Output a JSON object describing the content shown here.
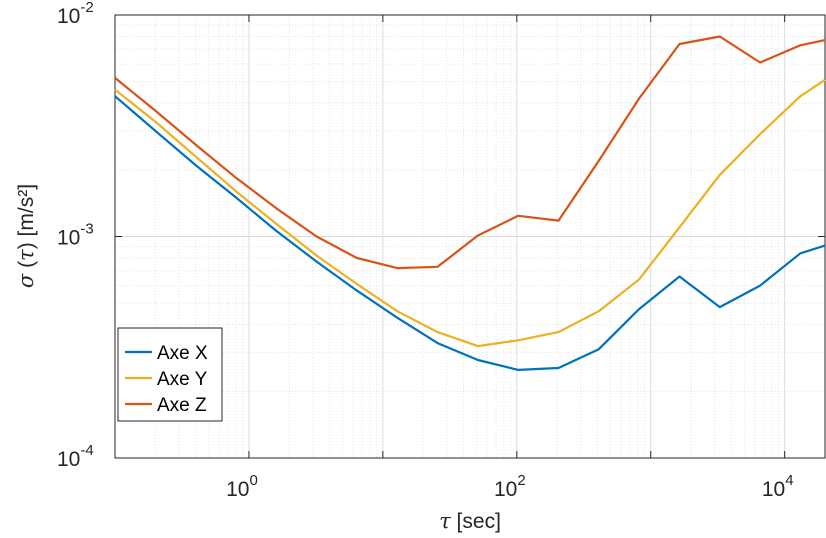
{
  "chart_data": {
    "type": "line",
    "x_scale": "log",
    "y_scale": "log",
    "xlim": [
      0.1,
      20000
    ],
    "ylim": [
      0.0001,
      0.01
    ],
    "grid": true,
    "legend_position": "bottom-left",
    "xlabel": {
      "symbol": "τ",
      "text": " [sec]"
    },
    "ylabel": {
      "symbol": "σ",
      "mid": " (",
      "symbol2": "τ",
      "text": ") [m/s²]"
    },
    "x_ticks": [
      {
        "value": 1,
        "base": "10",
        "exp": "0"
      },
      {
        "value": 100,
        "base": "10",
        "exp": "2"
      },
      {
        "value": 10000,
        "base": "10",
        "exp": "4"
      }
    ],
    "y_ticks": [
      {
        "value": 0.0001,
        "base": "10",
        "exp": "-4"
      },
      {
        "value": 0.001,
        "base": "10",
        "exp": "-3"
      },
      {
        "value": 0.01,
        "base": "10",
        "exp": "-2"
      }
    ],
    "x": [
      0.1,
      0.2,
      0.4,
      0.8,
      1.6,
      3.2,
      6.4,
      12.8,
      25.6,
      51.2,
      102.4,
      204.8,
      409.6,
      819.2,
      1638.4,
      3276.8,
      6553.6,
      13107.2,
      20000
    ],
    "series": [
      {
        "name": "Axe X",
        "color": "#0072BD",
        "values": [
          0.0043,
          0.003,
          0.0021,
          0.0015,
          0.00106,
          0.00077,
          0.00057,
          0.00043,
          0.00033,
          0.000277,
          0.00025,
          0.000255,
          0.00031,
          0.00047,
          0.00066,
          0.00048,
          0.0006,
          0.00084,
          0.00091
        ]
      },
      {
        "name": "Axe Y",
        "color": "#EDB120",
        "values": [
          0.0046,
          0.0033,
          0.0023,
          0.0016,
          0.00114,
          0.00082,
          0.00061,
          0.00046,
          0.00037,
          0.00032,
          0.00034,
          0.00037,
          0.00046,
          0.00064,
          0.0011,
          0.0019,
          0.0029,
          0.0043,
          0.0051
        ]
      },
      {
        "name": "Axe Z",
        "color": "#D95319",
        "values": [
          0.0052,
          0.0037,
          0.0026,
          0.00184,
          0.00134,
          0.001,
          0.0008,
          0.00072,
          0.00073,
          0.00101,
          0.00124,
          0.00118,
          0.0022,
          0.0042,
          0.0074,
          0.008,
          0.0061,
          0.0073,
          0.0077
        ]
      }
    ]
  }
}
